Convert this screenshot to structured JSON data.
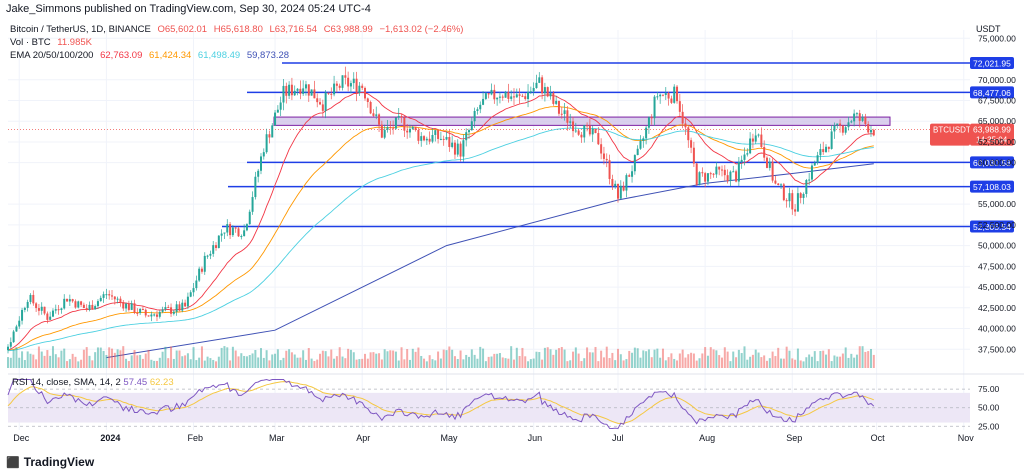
{
  "header": {
    "publisher": "Jake_Simmons published on TradingView.com, Sep 30, 2024 05:24 UTC-4"
  },
  "legend": {
    "symbol": "Bitcoin / TetherUS, 1D, BINANCE",
    "o": "O65,602.01",
    "h": "H65,618.80",
    "l": "L63,716.54",
    "c": "C63,988.99",
    "change": "−1,613.02 (−2.46%)",
    "vol_label": "Vol · BTC",
    "vol_value": "11.985K",
    "ema_label": "EMA 20/50/100/200",
    "ema20": "62,763.09",
    "ema50": "61,424.34",
    "ema100": "61,498.49",
    "ema200": "59,873.28"
  },
  "rsi_legend": {
    "label": "RSI 14, close, SMA, 14, 2",
    "value": "57.45",
    "sma": "62.23"
  },
  "axis": {
    "currency": "USDT"
  },
  "footer": {
    "brand": "TradingView"
  },
  "colors": {
    "up": "#26a69a",
    "down": "#ef5350",
    "ema20": "#f23645",
    "ema50": "#ff9800",
    "ema100": "#4dd0e1",
    "ema200": "#3f51b5",
    "hline": "#1e3ee6",
    "zone_fill": "#d1c4e9",
    "zone_border": "#7b1fa2",
    "rsi": "#7e57c2",
    "rsi_sma": "#f5c842",
    "rsi_band": "#ede7f6"
  },
  "chart_data": {
    "type": "candlestick",
    "price_axis": {
      "ticks": [
        "75,000.00",
        "70,000.00",
        "67,500.00",
        "65,000.00",
        "62,500.00",
        "60,000.00",
        "55,000.00",
        "52,500.00",
        "50,000.00",
        "47,500.00",
        "45,000.00",
        "42,500.00",
        "40,000.00",
        "37,500.00"
      ],
      "range": [
        35000,
        76000
      ]
    },
    "x_ticks": [
      "Dec",
      "2024",
      "Feb",
      "Mar",
      "Apr",
      "May",
      "Jun",
      "Jul",
      "Aug",
      "Sep",
      "Oct",
      "Nov"
    ],
    "horizontal_levels": [
      {
        "price": 72021.95,
        "label": "72,021.95"
      },
      {
        "price": 68477.06,
        "label": "68,477.06"
      },
      {
        "price": 60030.58,
        "label": "60,030.58"
      },
      {
        "price": 57108.03,
        "label": "57,108.03"
      },
      {
        "price": 52305.54,
        "label": "52,305.54"
      }
    ],
    "resistance_zone": [
      64500,
      65500
    ],
    "last_price": {
      "symbol": "BTCUSDT",
      "value": "63,988.99",
      "countdown": "14:35:04",
      "price": 63988.99
    },
    "price_series": [
      [
        "2023-11-20",
        37300
      ],
      [
        "2023-11-27",
        37900
      ],
      [
        "2023-12-04",
        43800
      ],
      [
        "2023-12-11",
        41400
      ],
      [
        "2023-12-18",
        43700
      ],
      [
        "2023-12-25",
        42300
      ],
      [
        "2024-01-01",
        44200
      ],
      [
        "2024-01-08",
        42800
      ],
      [
        "2024-01-15",
        41600
      ],
      [
        "2024-01-22",
        42100
      ],
      [
        "2024-01-29",
        42600
      ],
      [
        "2024-02-05",
        48300
      ],
      [
        "2024-02-12",
        52100
      ],
      [
        "2024-02-19",
        51800
      ],
      [
        "2024-02-26",
        62000
      ],
      [
        "2024-03-04",
        68300
      ],
      [
        "2024-03-11",
        69500
      ],
      [
        "2024-03-18",
        67200
      ],
      [
        "2024-03-25",
        69600
      ],
      [
        "2024-04-01",
        69300
      ],
      [
        "2024-04-08",
        63500
      ],
      [
        "2024-04-15",
        64900
      ],
      [
        "2024-04-22",
        63100
      ],
      [
        "2024-04-29",
        63000
      ],
      [
        "2024-05-06",
        61400
      ],
      [
        "2024-05-13",
        67000
      ],
      [
        "2024-05-20",
        68500
      ],
      [
        "2024-05-27",
        67700
      ],
      [
        "2024-06-03",
        69600
      ],
      [
        "2024-06-10",
        66200
      ],
      [
        "2024-06-17",
        64200
      ],
      [
        "2024-06-24",
        62700
      ],
      [
        "2024-07-01",
        55800
      ],
      [
        "2024-07-08",
        60800
      ],
      [
        "2024-07-15",
        68200
      ],
      [
        "2024-07-22",
        68200
      ],
      [
        "2024-07-29",
        58100
      ],
      [
        "2024-08-05",
        58700
      ],
      [
        "2024-08-12",
        58400
      ],
      [
        "2024-08-19",
        64200
      ],
      [
        "2024-08-26",
        57300
      ],
      [
        "2024-09-02",
        54800
      ],
      [
        "2024-09-09",
        60000
      ],
      [
        "2024-09-16",
        63600
      ],
      [
        "2024-09-23",
        65600
      ],
      [
        "2024-09-30",
        63988
      ]
    ],
    "ema_200_approx": [
      [
        "2024-01-01",
        36500
      ],
      [
        "2024-03-01",
        39800
      ],
      [
        "2024-05-01",
        50000
      ],
      [
        "2024-07-01",
        55500
      ],
      [
        "2024-08-01",
        57500
      ],
      [
        "2024-09-01",
        58700
      ],
      [
        "2024-09-30",
        59873
      ]
    ],
    "rsi": {
      "ticks": [
        "75.00",
        "50.00",
        "25.00"
      ],
      "range": [
        20,
        90
      ],
      "band": [
        30,
        70
      ],
      "latest": 57.45,
      "sma_latest": 62.23
    }
  }
}
